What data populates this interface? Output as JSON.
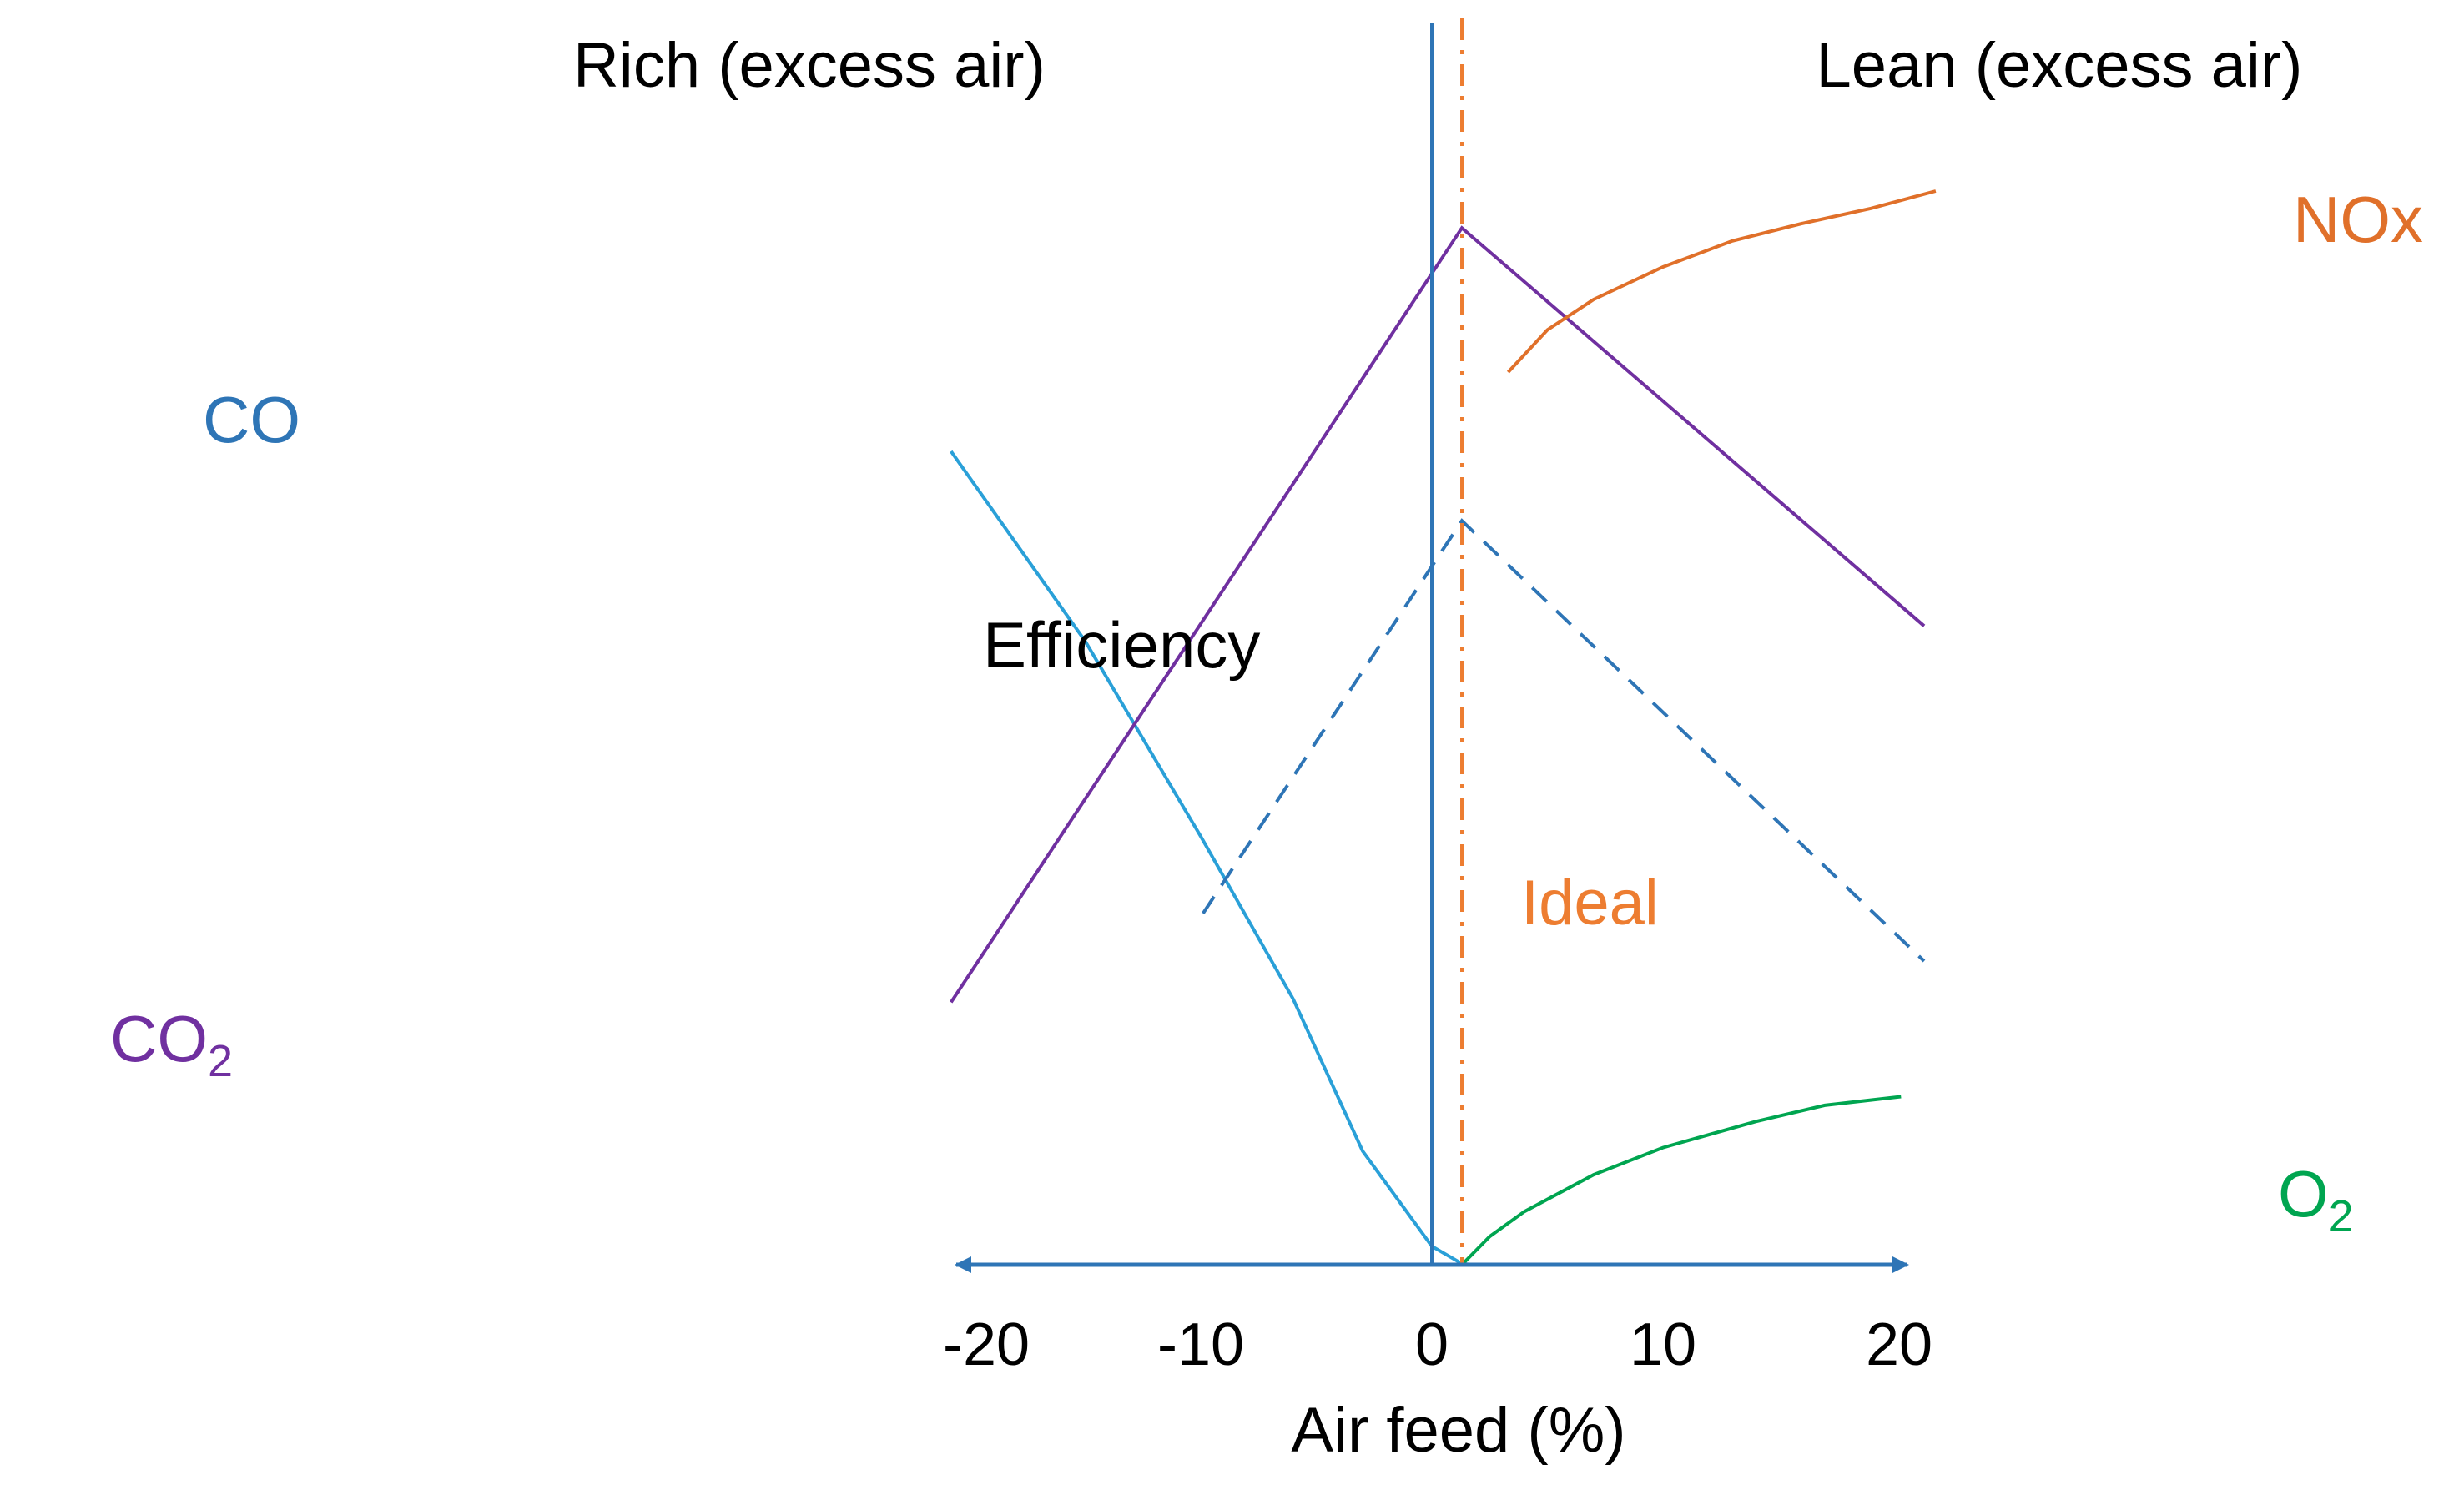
{
  "colors": {
    "axis": "#2E75B6",
    "zero_line": "#2E75B6",
    "ideal": "#ED7D31",
    "co": "#2AA0D8",
    "co_label": "#2E75B6",
    "co2": "#7030A0",
    "co2_label": "#7030A0",
    "efficiency": "#2E75B6",
    "nox": "#E0702A",
    "o2": "#00A550"
  },
  "chart_data": {
    "type": "line",
    "xlabel": "Air feed (%)",
    "ylabel": "",
    "xlim": [
      -20,
      20
    ],
    "ylim": [
      0,
      100
    ],
    "x_ticks": [
      -20,
      -10,
      0,
      10,
      20
    ],
    "x_tick_labels": [
      "-20",
      "-10",
      "0",
      "10",
      "20"
    ],
    "region_labels": {
      "rich": "Rich (excess air)",
      "lean": "Lean (excess air)"
    },
    "ideal": {
      "x": 1.3,
      "label": "Ideal"
    },
    "zero_line_x": 0,
    "series": [
      {
        "name": "CO",
        "style": "solid",
        "points": [
          [
            -20.8,
            75.0
          ],
          [
            -15,
            57.5
          ],
          [
            -10,
            39.5
          ],
          [
            -6,
            24.5
          ],
          [
            -3,
            10.5
          ],
          [
            0,
            1.7
          ],
          [
            1.3,
            0.1
          ],
          [
            1.8,
            0.0
          ]
        ]
      },
      {
        "name": "CO",
        "label_parts": [
          "CO",
          "2"
        ],
        "style": "solid",
        "points": [
          [
            -20.8,
            24.2
          ],
          [
            1.3,
            95.6
          ],
          [
            21.3,
            58.9
          ]
        ]
      },
      {
        "name": "Efficiency",
        "style": "dashed",
        "points": [
          [
            -9.9,
            32.4
          ],
          [
            1.3,
            68.6
          ],
          [
            21.3,
            28.0
          ]
        ]
      },
      {
        "name": "NOx",
        "style": "solid",
        "points": [
          [
            3.3,
            82.3
          ],
          [
            5,
            86.2
          ],
          [
            7,
            89.0
          ],
          [
            10,
            92.0
          ],
          [
            13,
            94.4
          ],
          [
            16,
            96.0
          ],
          [
            19,
            97.4
          ],
          [
            21.8,
            99.0
          ]
        ]
      },
      {
        "name": "O",
        "label_parts": [
          "O",
          "2"
        ],
        "style": "solid",
        "points": [
          [
            1.3,
            0.0
          ],
          [
            2.5,
            2.6
          ],
          [
            4,
            4.9
          ],
          [
            7,
            8.3
          ],
          [
            10,
            10.8
          ],
          [
            14,
            13.2
          ],
          [
            17,
            14.7
          ],
          [
            20.3,
            15.5
          ]
        ]
      }
    ]
  }
}
